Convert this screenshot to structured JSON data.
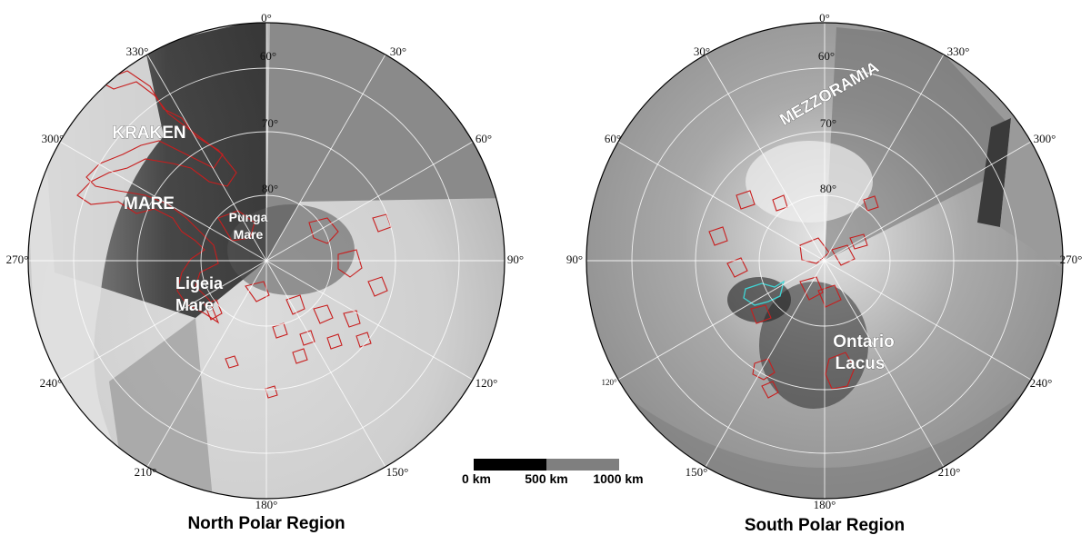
{
  "maps": [
    {
      "id": "north",
      "title": "North Polar Region",
      "longitude_labels": [
        "0°",
        "30°",
        "60°",
        "90°",
        "120°",
        "150°",
        "180°",
        "210°",
        "240°",
        "270°",
        "300°",
        "330°"
      ],
      "latitude_labels": [
        "60°",
        "70°",
        "80°"
      ],
      "features": [
        "KRAKEN",
        "MARE",
        "Punga",
        "Mare",
        "Ligeia",
        "Mare"
      ]
    },
    {
      "id": "south",
      "title": "South Polar Region",
      "longitude_labels": [
        "0°",
        "330°",
        "300°",
        "270°",
        "240°",
        "210°",
        "180°",
        "150°",
        "120°",
        "90°",
        "60°",
        "30°"
      ],
      "latitude_labels": [
        "60°",
        "70°",
        "80°"
      ],
      "features": [
        "MEZZORAMIA",
        "Ontario",
        "Lacus"
      ]
    }
  ],
  "scale_bar": {
    "labels": [
      "0 km",
      "500 km",
      "1000 km"
    ],
    "colors": [
      "#000000",
      "#7f7f7f"
    ]
  },
  "colors": {
    "lake_outline": "#c81e1e",
    "lake_highlight": "#3fd6d6",
    "grid": "#ffffff",
    "missing_data": "#8a8a8a"
  }
}
